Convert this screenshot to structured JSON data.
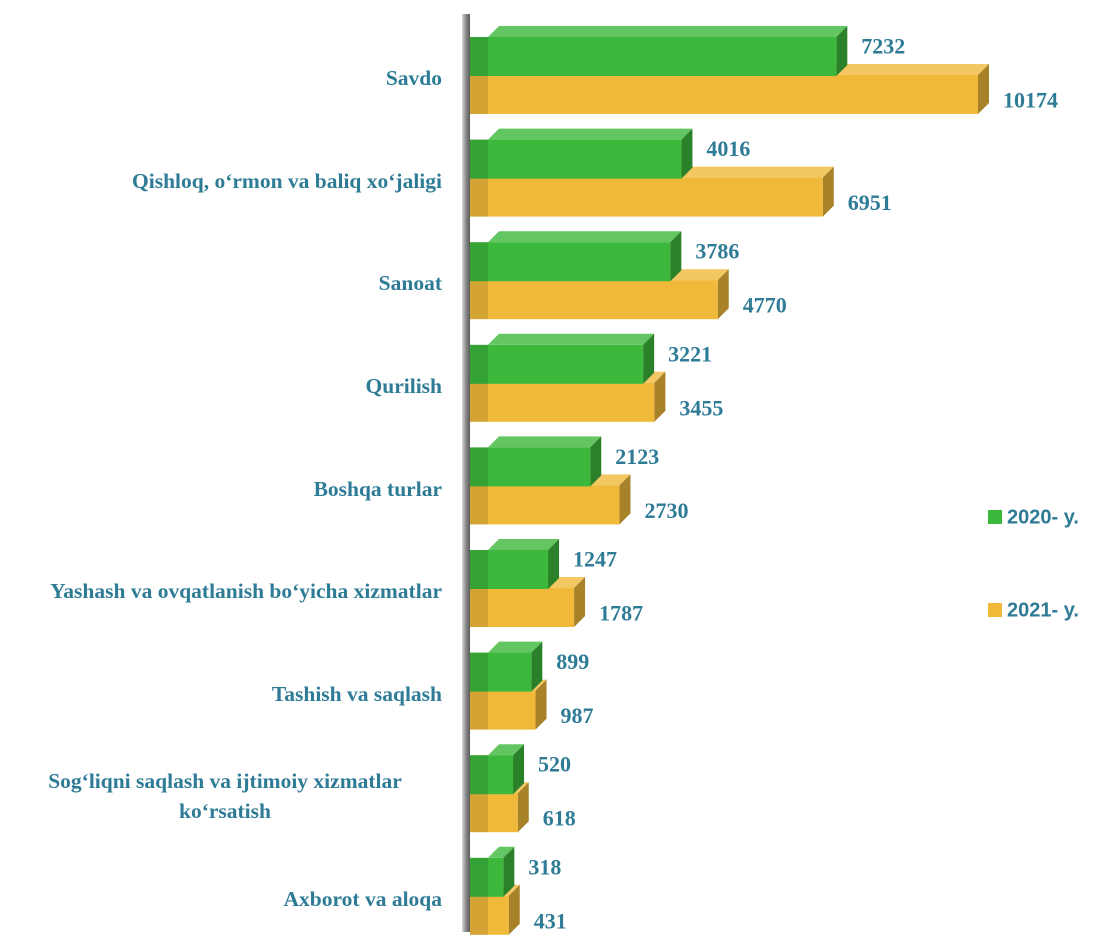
{
  "chart_data": {
    "type": "bar",
    "orientation": "horizontal",
    "categories": [
      "Savdo",
      "Qishloq, o‘rmon  va baliq xo‘jaligi",
      "Sanoat",
      "Qurilish",
      "Boshqa turlar",
      "Yashash va ovqatlanish bo‘yicha xizmatlar",
      "Tashish va saqlash",
      "Sog‘liqni saqlash va ijtimoiy xizmatlar ko‘rsatish",
      "Axborot va aloqa"
    ],
    "series": [
      {
        "name": "2020- y.",
        "color": "#3cb83c",
        "values": [
          7232,
          4016,
          3786,
          3221,
          2123,
          1247,
          899,
          520,
          318
        ]
      },
      {
        "name": "2021- y.",
        "color": "#f0b93a",
        "values": [
          10174,
          6951,
          4770,
          3455,
          2730,
          1787,
          987,
          618,
          431
        ]
      }
    ],
    "legend": "right"
  }
}
